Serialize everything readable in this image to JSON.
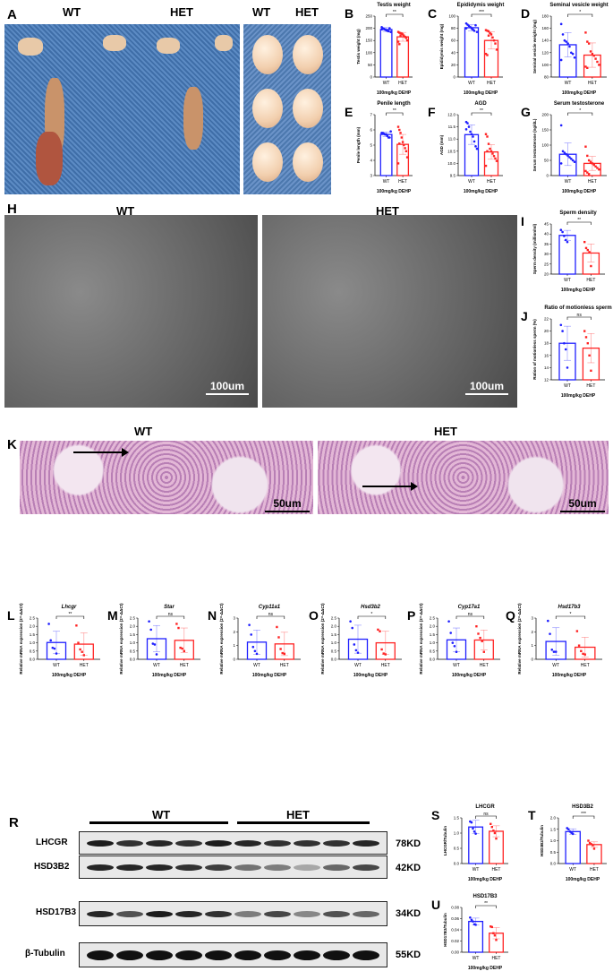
{
  "panel_a": {
    "letter": "A",
    "wt": "WT",
    "het": "HET",
    "wt2": "WT",
    "het2": "HET"
  },
  "panel_h": {
    "letter": "H",
    "wt": "WT",
    "het": "HET",
    "scale_left": "100um",
    "scale_right": "100um"
  },
  "panel_k": {
    "letter": "K",
    "wt": "WT",
    "het": "HET",
    "scale_left": "50um",
    "scale_right": "50um"
  },
  "panel_r": {
    "letter": "R",
    "wt": "WT",
    "het": "HET",
    "rows": [
      {
        "protein": "LHCGR",
        "size": "78KD"
      },
      {
        "protein": "HSD3B2",
        "size": "42KD"
      },
      {
        "protein": "HSD17B3",
        "size": "34KD"
      },
      {
        "protein": "β-Tubulin",
        "size": "55KD"
      }
    ],
    "band_intensity": {
      "LHCGR": [
        0.95,
        0.85,
        0.9,
        0.85,
        0.95,
        0.9,
        0.85,
        0.85,
        0.85,
        0.9
      ],
      "HSD3B2": [
        0.9,
        0.9,
        0.9,
        0.85,
        0.8,
        0.55,
        0.5,
        0.3,
        0.6,
        0.75
      ],
      "HSD17B3": [
        0.9,
        0.7,
        0.95,
        0.9,
        0.85,
        0.5,
        0.75,
        0.45,
        0.7,
        0.6
      ],
      "β-Tubulin": [
        1,
        1,
        1,
        1,
        1,
        1,
        1,
        1,
        1,
        1
      ]
    }
  },
  "colors": {
    "wt": "#1f1fff",
    "het": "#ff2424"
  },
  "chart_data": [
    {
      "panel": "B",
      "type": "bar",
      "title": "Testis weight",
      "ylabel": "Testis weight (mg)",
      "xlabel": "100mg/kg DEHP",
      "categories": [
        "WT",
        "HET"
      ],
      "ylim": [
        0,
        250
      ],
      "yticks": [
        0,
        50,
        100,
        150,
        200,
        250
      ],
      "significance": "**",
      "series": [
        {
          "name": "WT",
          "mean": 195,
          "sd": 8,
          "points": [
            205,
            200,
            198,
            195,
            192,
            190,
            188,
            200,
            185,
            196
          ]
        },
        {
          "name": "HET",
          "mean": 165,
          "sd": 18,
          "points": [
            185,
            182,
            180,
            178,
            175,
            170,
            165,
            160,
            150,
            145,
            135,
            170
          ]
        }
      ]
    },
    {
      "panel": "C",
      "type": "bar",
      "title": "Epididymis weight",
      "ylabel": "Epididymis weight (mg)",
      "xlabel": "100mg/kg DEHP",
      "categories": [
        "WT",
        "HET"
      ],
      "ylim": [
        0,
        100
      ],
      "yticks": [
        0,
        20,
        40,
        60,
        80,
        100
      ],
      "significance": "***",
      "series": [
        {
          "name": "WT",
          "mean": 81,
          "sd": 5,
          "points": [
            88,
            86,
            84,
            82,
            80,
            78,
            76,
            85,
            74,
            80
          ]
        },
        {
          "name": "HET",
          "mean": 60,
          "sd": 14,
          "points": [
            77,
            76,
            75,
            72,
            70,
            65,
            60,
            55,
            45,
            38,
            36,
            68
          ]
        }
      ]
    },
    {
      "panel": "D",
      "type": "bar",
      "title": "Seminal vesicle weight",
      "ylabel": "Seminal vesicle weight (mg)",
      "xlabel": "100mg/kg DEHP",
      "categories": [
        "WT",
        "HET"
      ],
      "ylim": [
        80,
        180
      ],
      "yticks": [
        80,
        100,
        120,
        140,
        160,
        180
      ],
      "significance": "*",
      "series": [
        {
          "name": "WT",
          "mean": 133,
          "sd": 20,
          "points": [
            167,
            150,
            140,
            138,
            135,
            130,
            120,
            118,
            112,
            108
          ]
        },
        {
          "name": "HET",
          "mean": 116,
          "sd": 20,
          "points": [
            153,
            138,
            135,
            122,
            118,
            115,
            110,
            105,
            100,
            97,
            95
          ]
        }
      ]
    },
    {
      "panel": "E",
      "type": "bar",
      "title": "Penile length",
      "ylabel": "Penile length (mm)",
      "xlabel": "100mg/kg DEHP",
      "categories": [
        "WT",
        "HET"
      ],
      "ylim": [
        3,
        7
      ],
      "yticks": [
        3,
        4,
        5,
        6,
        7
      ],
      "significance": "**",
      "series": [
        {
          "name": "WT",
          "mean": 5.7,
          "sd": 0.15,
          "points": [
            5.8,
            5.8,
            5.75,
            5.7,
            5.7,
            5.6,
            5.5,
            5.5,
            5.9,
            5.8
          ]
        },
        {
          "name": "HET",
          "mean": 5.05,
          "sd": 0.65,
          "points": [
            6.2,
            6.0,
            5.8,
            5.5,
            5.2,
            5.0,
            4.8,
            4.6,
            4.2,
            3.8,
            5.1
          ]
        }
      ]
    },
    {
      "panel": "F",
      "type": "bar",
      "title": "AGD",
      "ylabel": "AGD (mm)",
      "xlabel": "100mg/kg DEHP",
      "categories": [
        "WT",
        "HET"
      ],
      "ylim": [
        9.5,
        12.0
      ],
      "yticks": [
        9.5,
        10.0,
        10.5,
        11.0,
        11.5,
        12.0
      ],
      "significance": "**",
      "series": [
        {
          "name": "WT",
          "mean": 11.18,
          "sd": 0.4,
          "points": [
            11.7,
            11.65,
            11.5,
            11.3,
            11.2,
            11.1,
            10.9,
            10.7,
            10.6,
            11.4
          ]
        },
        {
          "name": "HET",
          "mean": 10.47,
          "sd": 0.3,
          "points": [
            11.2,
            11.1,
            10.8,
            10.6,
            10.5,
            10.4,
            10.3,
            10.2,
            10.1,
            9.9,
            10.5
          ]
        }
      ]
    },
    {
      "panel": "G",
      "type": "bar",
      "title": "Serum testosterone",
      "ylabel": "Serum testosterone (ng/dL)",
      "xlabel": "100mg/kg DEHP",
      "categories": [
        "WT",
        "HET"
      ],
      "ylim": [
        0,
        200
      ],
      "yticks": [
        0,
        50,
        100,
        150,
        200
      ],
      "significance": "*",
      "series": [
        {
          "name": "WT",
          "mean": 70,
          "sd": 37,
          "points": [
            165,
            80,
            75,
            70,
            65,
            60,
            55,
            50,
            45,
            40
          ]
        },
        {
          "name": "HET",
          "mean": 40,
          "sd": 23,
          "points": [
            95,
            65,
            50,
            45,
            40,
            35,
            30,
            25,
            20,
            15,
            10,
            5
          ]
        }
      ]
    },
    {
      "panel": "I",
      "type": "bar",
      "title": "Sperm density",
      "ylabel": "Sperm density (million/ml)",
      "xlabel": "100mg/kg DEHP",
      "categories": [
        "WT",
        "HET"
      ],
      "ylim": [
        20,
        45
      ],
      "yticks": [
        20,
        25,
        30,
        35,
        40,
        45
      ],
      "significance": "**",
      "series": [
        {
          "name": "WT",
          "mean": 39.3,
          "sd": 2.5,
          "points": [
            42,
            41,
            39,
            37,
            36
          ]
        },
        {
          "name": "HET",
          "mean": 30.5,
          "sd": 4.5,
          "points": [
            36,
            33,
            32,
            31,
            24
          ]
        }
      ]
    },
    {
      "panel": "J",
      "type": "bar",
      "title": "Ratio of motionless sperm",
      "ylabel": "Ration of motionless sperm (%)",
      "xlabel": "100mg/kg DEHP",
      "categories": [
        "WT",
        "HET"
      ],
      "ylim": [
        12,
        22
      ],
      "yticks": [
        12,
        14,
        16,
        18,
        20,
        22
      ],
      "significance": "ns",
      "series": [
        {
          "name": "WT",
          "mean": 18,
          "sd": 2.8,
          "points": [
            21,
            20,
            18,
            17,
            14
          ]
        },
        {
          "name": "HET",
          "mean": 17.2,
          "sd": 2.4,
          "points": [
            20,
            19,
            18,
            16,
            13.5
          ]
        }
      ]
    },
    {
      "panel": "L",
      "type": "bar",
      "title": "Lhcgr",
      "ylabel": "Relative mRNA expression (2^-ΔΔCt)",
      "xlabel": "100mg/kg DEHP",
      "categories": [
        "WT",
        "HET"
      ],
      "ylim": [
        0,
        2.5
      ],
      "yticks": [
        0.0,
        0.5,
        1.0,
        1.5,
        2.0,
        2.5
      ],
      "significance": "**",
      "series": [
        {
          "name": "WT",
          "mean": 1.02,
          "sd": 0.68,
          "points": [
            2.15,
            1.15,
            0.7,
            0.65,
            0.35
          ]
        },
        {
          "name": "HET",
          "mean": 0.92,
          "sd": 0.68,
          "points": [
            2.05,
            1.0,
            0.6,
            0.45,
            0.25
          ]
        }
      ]
    },
    {
      "panel": "M",
      "type": "bar",
      "title": "Star",
      "ylabel": "Relative mRNA expression (2^-ΔΔCt)",
      "xlabel": "100mg/kg DEHP",
      "categories": [
        "WT",
        "HET"
      ],
      "ylim": [
        0,
        2.5
      ],
      "yticks": [
        0.0,
        0.5,
        1.0,
        1.5,
        2.0,
        2.5
      ],
      "significance": "ns",
      "series": [
        {
          "name": "WT",
          "mean": 1.25,
          "sd": 0.8,
          "points": [
            2.3,
            1.8,
            0.95,
            0.9,
            0.3
          ]
        },
        {
          "name": "HET",
          "mean": 1.15,
          "sd": 0.75,
          "points": [
            2.15,
            1.9,
            0.7,
            0.65,
            0.5
          ]
        }
      ]
    },
    {
      "panel": "N",
      "type": "bar",
      "title": "Cyp11a1",
      "ylabel": "Relative mRNA expression (2^-ΔΔCt)",
      "xlabel": "100mg/kg DEHP",
      "categories": [
        "WT",
        "HET"
      ],
      "ylim": [
        0,
        3
      ],
      "yticks": [
        0,
        1,
        2,
        3
      ],
      "significance": "ns",
      "series": [
        {
          "name": "WT",
          "mean": 1.25,
          "sd": 0.88,
          "points": [
            2.5,
            1.8,
            0.9,
            0.6,
            0.4
          ]
        },
        {
          "name": "HET",
          "mean": 1.12,
          "sd": 0.85,
          "points": [
            2.35,
            1.6,
            0.75,
            0.45,
            0.4
          ]
        }
      ]
    },
    {
      "panel": "O",
      "type": "bar",
      "title": "Hsd3b2",
      "ylabel": "Relative mRNA expression (2^-ΔΔCt)",
      "xlabel": "100mg/kg DEHP",
      "categories": [
        "WT",
        "HET"
      ],
      "ylim": [
        0,
        2.5
      ],
      "yticks": [
        0.0,
        0.5,
        1.0,
        1.5,
        2.0,
        2.5
      ],
      "significance": "*",
      "series": [
        {
          "name": "WT",
          "mean": 1.22,
          "sd": 0.85,
          "points": [
            2.3,
            1.9,
            0.9,
            0.55,
            0.4
          ]
        },
        {
          "name": "HET",
          "mean": 1.0,
          "sd": 0.7,
          "points": [
            1.8,
            1.7,
            0.6,
            0.35,
            0.3
          ]
        }
      ]
    },
    {
      "panel": "P",
      "type": "bar",
      "title": "Cyp17a1",
      "ylabel": "Relative mRNA expression (2^-ΔΔCt)",
      "xlabel": "100mg/kg DEHP",
      "categories": [
        "WT",
        "HET"
      ],
      "ylim": [
        0,
        2.5
      ],
      "yticks": [
        0.0,
        0.5,
        1.0,
        1.5,
        2.0,
        2.5
      ],
      "significance": "ns",
      "series": [
        {
          "name": "WT",
          "mean": 1.18,
          "sd": 0.72,
          "points": [
            2.3,
            1.6,
            1.0,
            0.8,
            0.45
          ]
        },
        {
          "name": "HET",
          "mean": 1.17,
          "sd": 0.6,
          "points": [
            2.0,
            1.55,
            1.3,
            1.1,
            0.45
          ]
        }
      ]
    },
    {
      "panel": "Q",
      "type": "bar",
      "title": "Hsd17b3",
      "ylabel": "Relative mRNA expression (2^-ΔΔCt)",
      "xlabel": "100mg/kg DEHP",
      "categories": [
        "WT",
        "HET"
      ],
      "ylim": [
        0,
        3
      ],
      "yticks": [
        0,
        1,
        2,
        3
      ],
      "significance": "*",
      "series": [
        {
          "name": "WT",
          "mean": 1.3,
          "sd": 1.0,
          "points": [
            2.8,
            1.85,
            0.7,
            0.55,
            0.55
          ]
        },
        {
          "name": "HET",
          "mean": 0.88,
          "sd": 0.72,
          "points": [
            2.05,
            1.0,
            0.6,
            0.4,
            0.35
          ]
        }
      ]
    },
    {
      "panel": "S",
      "type": "bar",
      "title": "LHCGR",
      "ylabel": "LHCGR/Tubulin",
      "xlabel": "100mg/kg DEHP",
      "categories": [
        "WT",
        "HET"
      ],
      "ylim": [
        0,
        1.5
      ],
      "yticks": [
        0.0,
        0.5,
        1.0,
        1.5
      ],
      "significance": "ns",
      "series": [
        {
          "name": "WT",
          "mean": 1.2,
          "sd": 0.22,
          "points": [
            1.38,
            1.35,
            1.15,
            1.05,
            0.98
          ]
        },
        {
          "name": "HET",
          "mean": 1.06,
          "sd": 0.18,
          "points": [
            1.3,
            1.2,
            1.08,
            1.0,
            0.82
          ]
        }
      ]
    },
    {
      "panel": "T",
      "type": "bar",
      "title": "HSD3B2",
      "ylabel": "HSD3B2/Tubulin",
      "xlabel": "100mg/kg DEHP",
      "categories": [
        "WT",
        "HET"
      ],
      "ylim": [
        0,
        2.0
      ],
      "yticks": [
        0.0,
        0.5,
        1.0,
        1.5,
        2.0
      ],
      "significance": "***",
      "series": [
        {
          "name": "WT",
          "mean": 1.4,
          "sd": 0.12,
          "points": [
            1.55,
            1.5,
            1.4,
            1.35,
            1.3
          ]
        },
        {
          "name": "HET",
          "mean": 0.83,
          "sd": 0.12,
          "points": [
            1.0,
            0.9,
            0.85,
            0.8,
            0.65
          ]
        }
      ]
    },
    {
      "panel": "U",
      "type": "bar",
      "title": "HSD17B3",
      "ylabel": "HSD17B3/Tubulin",
      "xlabel": "100mg/kg DEHP",
      "categories": [
        "WT",
        "HET"
      ],
      "ylim": [
        0,
        0.08
      ],
      "yticks": [
        0.0,
        0.02,
        0.04,
        0.06,
        0.08
      ],
      "significance": "**",
      "series": [
        {
          "name": "WT",
          "mean": 0.055,
          "sd": 0.006,
          "points": [
            0.062,
            0.058,
            0.055,
            0.05,
            0.049
          ]
        },
        {
          "name": "HET",
          "mean": 0.034,
          "sd": 0.01,
          "points": [
            0.046,
            0.045,
            0.034,
            0.03,
            0.022
          ]
        }
      ]
    }
  ]
}
